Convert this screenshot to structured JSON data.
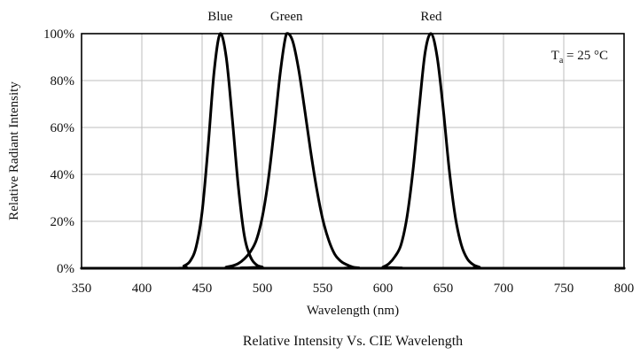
{
  "chart_data": {
    "type": "line",
    "title": "",
    "caption": "Relative Intensity Vs. CIE Wavelength",
    "xlabel": "Wavelength (nm)",
    "ylabel": "Relative Radiant Intensity",
    "xlim": [
      350,
      800
    ],
    "ylim": [
      0,
      100
    ],
    "y_unit": "%",
    "grid": true,
    "x_ticks": [
      350,
      400,
      450,
      500,
      550,
      600,
      650,
      700,
      750,
      800
    ],
    "x_tick_labels": [
      "350",
      "400",
      "450",
      "500",
      "550",
      "600",
      "650",
      "700",
      "750",
      "800"
    ],
    "y_ticks": [
      0,
      20,
      40,
      60,
      80,
      100
    ],
    "y_tick_labels": [
      "0%",
      "20%",
      "40%",
      "60%",
      "80%",
      "100%"
    ],
    "annotation": {
      "base": "T",
      "subscript": "a",
      "rest": " = 25 °C",
      "placement": "top-right"
    },
    "series": [
      {
        "name": "Blue",
        "color": "#000000",
        "x": [
          350,
          430,
          435,
          440,
          445,
          450,
          455,
          460,
          465,
          470,
          475,
          480,
          485,
          490,
          495,
          500,
          505,
          800
        ],
        "y": [
          0,
          0,
          1,
          3,
          9,
          24,
          52,
          84,
          100,
          90,
          64,
          35,
          14,
          5,
          1.5,
          0.5,
          0,
          0
        ]
      },
      {
        "name": "Green",
        "color": "#000000",
        "x": [
          350,
          465,
          470,
          475,
          480,
          485,
          490,
          495,
          500,
          505,
          510,
          515,
          520,
          525,
          530,
          535,
          540,
          545,
          550,
          555,
          560,
          565,
          570,
          575,
          580,
          585,
          800
        ],
        "y": [
          0,
          0,
          0.5,
          1,
          2,
          4,
          7,
          12,
          22,
          38,
          60,
          84,
          100,
          97,
          85,
          68,
          50,
          34,
          21,
          12,
          6,
          3,
          1.5,
          0.5,
          0.2,
          0,
          0
        ]
      },
      {
        "name": "Red",
        "color": "#000000",
        "x": [
          350,
          597,
          600,
          605,
          610,
          615,
          620,
          625,
          630,
          635,
          640,
          645,
          650,
          655,
          660,
          665,
          670,
          675,
          680,
          685,
          800
        ],
        "y": [
          0,
          0,
          0.5,
          2,
          5,
          10,
          22,
          42,
          68,
          92,
          100,
          90,
          68,
          42,
          22,
          10,
          4,
          1.5,
          0.5,
          0,
          0
        ]
      }
    ]
  }
}
